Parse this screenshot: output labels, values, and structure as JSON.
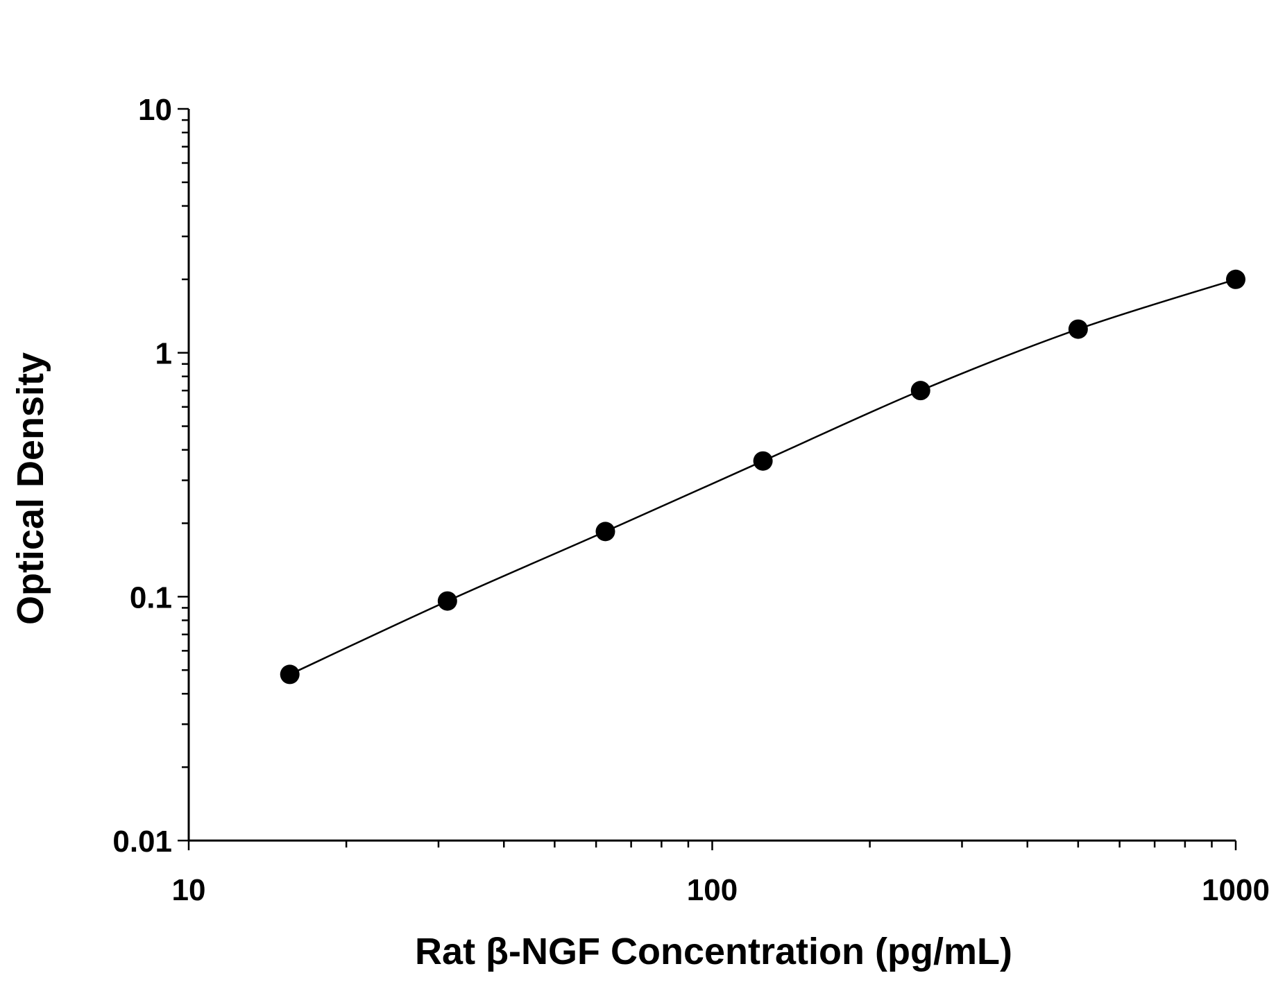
{
  "chart_data": {
    "type": "scatter",
    "title": "",
    "xlabel": "Rat β-NGF Concentration (pg/mL)",
    "ylabel": "Optical Density",
    "x_scale": "log",
    "y_scale": "log",
    "xlim": [
      10,
      1000
    ],
    "ylim": [
      0.01,
      10
    ],
    "x_ticks": [
      "10",
      "100",
      "1000"
    ],
    "y_ticks": [
      "0.01",
      "0.1",
      "1",
      "10"
    ],
    "grid": false,
    "legend": "none",
    "series": [
      {
        "x": [
          15.6,
          31.2,
          62.5,
          125,
          250,
          500,
          1000
        ],
        "y": [
          0.048,
          0.096,
          0.185,
          0.36,
          0.7,
          1.25,
          2.0
        ],
        "marker": "filled-circle",
        "fit_line": true
      }
    ],
    "colors": {
      "marker": "#000000",
      "line": "#000000",
      "axes": "#000000"
    }
  }
}
